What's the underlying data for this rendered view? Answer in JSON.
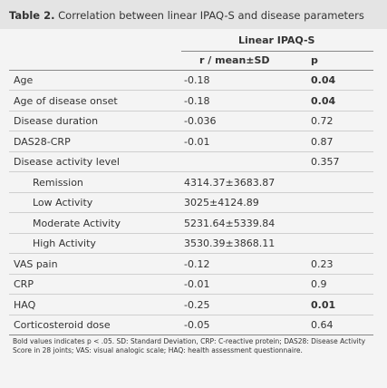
{
  "header": {
    "label": "Table 2.",
    "title": "Correlation between linear IPAQ-S and disease parameters"
  },
  "table": {
    "group_header": "Linear IPAQ-S",
    "columns": [
      "r / mean±SD",
      "p"
    ],
    "rows": [
      {
        "label": "Age",
        "r": "-0.18",
        "p": "0.04",
        "bold": true
      },
      {
        "label": "Age of disease onset",
        "r": "-0.18",
        "p": "0.04",
        "bold": true
      },
      {
        "label": "Disease duration",
        "r": "-0.036",
        "p": "0.72"
      },
      {
        "label": "DAS28-CRP",
        "r": "-0.01",
        "p": "0.87"
      },
      {
        "label": "Disease activity level",
        "r": "",
        "p": "0.357"
      },
      {
        "label": "Remission",
        "r": "4314.37±3683.87",
        "p": "",
        "indent": true
      },
      {
        "label": "Low Activity",
        "r": "3025±4124.89",
        "p": "",
        "indent": true
      },
      {
        "label": "Moderate Activity",
        "r": "5231.64±5339.84",
        "p": "",
        "indent": true
      },
      {
        "label": "High Activity",
        "r": "3530.39±3868.11",
        "p": "",
        "indent": true
      },
      {
        "label": "VAS pain",
        "r": "-0.12",
        "p": "0.23"
      },
      {
        "label": "CRP",
        "r": "-0.01",
        "p": "0.9"
      },
      {
        "label": "HAQ",
        "r": "-0.25",
        "p": "0.01",
        "bold": true
      },
      {
        "label": "Corticosteroid dose",
        "r": "-0.05",
        "p": "0.64"
      }
    ]
  },
  "footnote": "Bold values indicates p < .05. SD: Standard Deviation, CRP: C-reactive protein; DAS28: Disease Activity Score in 28 joints; VAS: visual analogic scale; HAQ: health assessment questionnaire."
}
